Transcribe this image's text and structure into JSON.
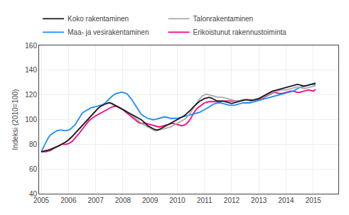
{
  "chart_data": {
    "type": "line",
    "ylabel": "Indeksi (2010=100)",
    "xlim": [
      2004.92,
      2015.92
    ],
    "ylim": [
      40,
      160
    ],
    "xticks": [
      2005,
      2006,
      2007,
      2008,
      2009,
      2010,
      2011,
      2012,
      2013,
      2014,
      2015
    ],
    "yticks": [
      40,
      60,
      80,
      100,
      120,
      140,
      160
    ],
    "grid": true,
    "legend": "upper left",
    "x": [
      2005.0,
      2005.0833333333333,
      2005.1666666666667,
      2005.25,
      2005.3333333333333,
      2005.4166666666667,
      2005.5,
      2005.5833333333333,
      2005.6666666666667,
      2005.75,
      2005.8333333333333,
      2005.9166666666667,
      2006.0,
      2006.0833333333333,
      2006.1666666666667,
      2006.25,
      2006.3333333333333,
      2006.4166666666667,
      2006.5,
      2006.5833333333333,
      2006.6666666666667,
      2006.75,
      2006.8333333333333,
      2006.9166666666667,
      2007.0,
      2007.0833333333333,
      2007.1666666666667,
      2007.25,
      2007.3333333333333,
      2007.4166666666667,
      2007.5,
      2007.5833333333333,
      2007.6666666666667,
      2007.75,
      2007.8333333333333,
      2007.9166666666667,
      2008.0,
      2008.0833333333333,
      2008.1666666666667,
      2008.25,
      2008.3333333333333,
      2008.4166666666667,
      2008.5,
      2008.5833333333333,
      2008.6666666666667,
      2008.75,
      2008.8333333333333,
      2008.9166666666667,
      2009.0,
      2009.0833333333333,
      2009.1666666666667,
      2009.25,
      2009.3333333333333,
      2009.4166666666667,
      2009.5,
      2009.5833333333333,
      2009.6666666666667,
      2009.75,
      2009.8333333333333,
      2009.9166666666667,
      2010.0,
      2010.0833333333333,
      2010.1666666666667,
      2010.25,
      2010.3333333333333,
      2010.4166666666667,
      2010.5,
      2010.5833333333333,
      2010.6666666666667,
      2010.75,
      2010.8333333333333,
      2010.9166666666667,
      2011.0,
      2011.0833333333333,
      2011.1666666666667,
      2011.25,
      2011.3333333333333,
      2011.4166666666667,
      2011.5,
      2011.5833333333333,
      2011.6666666666667,
      2011.75,
      2011.8333333333333,
      2011.9166666666667,
      2012.0,
      2012.0833333333333,
      2012.1666666666667,
      2012.25,
      2012.3333333333333,
      2012.4166666666667,
      2012.5,
      2012.5833333333333,
      2012.6666666666667,
      2012.75,
      2012.8333333333333,
      2012.9166666666667,
      2013.0,
      2013.0833333333333,
      2013.1666666666667,
      2013.25,
      2013.3333333333333,
      2013.4166666666667,
      2013.5,
      2013.5833333333333,
      2013.6666666666667,
      2013.75,
      2013.8333333333333,
      2013.9166666666667,
      2014.0,
      2014.0833333333333,
      2014.1666666666667,
      2014.25,
      2014.3333333333333,
      2014.4166666666667,
      2014.5,
      2014.5833333333333,
      2014.6666666666667,
      2014.75,
      2014.8333333333333,
      2014.9166666666667,
      2015.0,
      2015.0833333333333
    ],
    "series": [
      {
        "name": "Koko rakentaminen",
        "color": "#1a1a1a",
        "values": [
          74.0,
          74.3,
          74.8,
          75.3,
          75.8,
          76.5,
          77.2,
          78.0,
          79.0,
          80.0,
          81.0,
          82.0,
          83.5,
          85.0,
          87.0,
          89.0,
          91.0,
          93.0,
          95.5,
          97.5,
          99.5,
          101.0,
          103.0,
          105.0,
          107.0,
          109.0,
          110.5,
          111.5,
          112.5,
          113.0,
          113.5,
          113.0,
          112.0,
          111.0,
          110.0,
          109.0,
          108.0,
          107.0,
          106.0,
          105.0,
          104.0,
          103.0,
          102.0,
          101.0,
          100.0,
          98.5,
          96.5,
          95.0,
          94.0,
          93.0,
          92.0,
          91.5,
          92.0,
          93.0,
          94.0,
          95.0,
          96.0,
          97.0,
          98.0,
          99.0,
          100.0,
          101.0,
          102.0,
          103.0,
          104.5,
          106.0,
          108.0,
          110.0,
          112.0,
          113.5,
          115.0,
          116.0,
          117.0,
          117.5,
          118.0,
          117.5,
          116.5,
          115.5,
          115.0,
          115.0,
          115.0,
          114.5,
          114.0,
          113.5,
          113.0,
          113.5,
          114.0,
          114.5,
          115.0,
          115.5,
          116.0,
          116.0,
          115.5,
          115.5,
          116.0,
          116.5,
          117.0,
          118.0,
          119.0,
          120.0,
          121.0,
          122.0,
          123.0,
          123.5,
          124.0,
          124.5,
          125.0,
          125.5,
          126.0,
          126.5,
          127.0,
          127.5,
          128.0,
          128.5,
          128.0,
          127.5,
          127.0,
          127.5,
          128.0,
          128.5,
          129.0,
          129.5
        ]
      },
      {
        "name": "Talonrakentaminen",
        "color": "#aaaaaa",
        "values": [
          74.0,
          74.3,
          74.8,
          75.3,
          75.8,
          76.5,
          77.2,
          78.0,
          79.0,
          80.0,
          81.0,
          82.0,
          83.5,
          85.0,
          87.0,
          89.0,
          91.0,
          93.0,
          95.5,
          97.5,
          99.5,
          101.0,
          103.0,
          105.0,
          107.0,
          109.0,
          110.5,
          111.5,
          112.5,
          113.0,
          114.0,
          113.5,
          112.5,
          111.5,
          110.5,
          109.5,
          108.5,
          107.5,
          106.0,
          104.5,
          103.0,
          101.5,
          100.0,
          98.5,
          97.0,
          96.0,
          95.0,
          94.0,
          93.0,
          92.0,
          91.0,
          91.0,
          91.5,
          92.0,
          92.5,
          93.0,
          93.5,
          94.0,
          95.0,
          96.0,
          97.0,
          98.0,
          99.0,
          100.0,
          101.5,
          103.5,
          106.0,
          109.0,
          112.0,
          114.5,
          117.0,
          119.0,
          120.0,
          120.5,
          120.0,
          119.5,
          119.0,
          118.5,
          118.0,
          118.0,
          118.0,
          117.5,
          117.0,
          116.5,
          116.0,
          115.5,
          115.0,
          115.0,
          115.5,
          115.5,
          116.0,
          116.0,
          115.5,
          115.5,
          116.0,
          116.5,
          117.0,
          117.5,
          118.0,
          119.0,
          120.0,
          121.0,
          122.0,
          122.5,
          123.0,
          123.5,
          124.0,
          124.0,
          124.0,
          124.5,
          125.0,
          125.5,
          126.0,
          126.5,
          126.0,
          125.5,
          125.0,
          125.5,
          126.0,
          126.5,
          127.0,
          127.5
        ]
      },
      {
        "name": "Maa- ja vesirakentaminen",
        "color": "#1a8cff",
        "values": [
          74.0,
          78.0,
          82.0,
          85.0,
          87.5,
          89.0,
          90.0,
          91.0,
          91.5,
          91.5,
          91.0,
          91.0,
          91.5,
          92.5,
          94.0,
          96.0,
          99.0,
          102.0,
          105.0,
          106.5,
          107.5,
          108.5,
          109.5,
          110.0,
          110.5,
          111.0,
          111.5,
          112.0,
          113.0,
          115.0,
          117.0,
          118.5,
          120.0,
          121.0,
          121.5,
          122.0,
          122.0,
          121.5,
          120.5,
          118.5,
          116.0,
          113.0,
          110.0,
          107.0,
          104.5,
          103.0,
          102.0,
          101.0,
          100.5,
          100.0,
          100.0,
          100.5,
          101.0,
          101.5,
          102.0,
          102.0,
          101.5,
          101.0,
          101.0,
          101.0,
          101.0,
          101.5,
          102.0,
          102.5,
          103.0,
          103.5,
          104.0,
          104.5,
          105.0,
          105.5,
          106.0,
          107.0,
          108.0,
          109.0,
          110.0,
          111.5,
          112.5,
          113.0,
          113.5,
          113.5,
          113.0,
          112.5,
          112.0,
          111.5,
          111.5,
          111.5,
          112.0,
          112.5,
          113.0,
          113.5,
          113.5,
          113.5,
          113.5,
          114.0,
          114.5,
          115.0,
          115.5,
          116.0,
          116.5,
          117.0,
          117.5,
          118.0,
          118.5,
          119.0,
          119.5,
          120.0,
          120.5,
          121.0,
          121.5,
          122.0,
          122.5,
          123.0,
          124.0,
          125.0,
          126.0,
          126.5,
          127.0,
          127.5,
          128.0,
          128.5,
          128.5,
          128.5
        ]
      },
      {
        "name": "Erikoistunut rakennustoiminta",
        "color": "#ff007f",
        "values": [
          74.0,
          74.0,
          74.0,
          74.5,
          75.0,
          76.0,
          77.0,
          78.0,
          79.0,
          80.0,
          80.0,
          80.0,
          80.5,
          81.5,
          83.0,
          85.0,
          87.0,
          89.5,
          92.0,
          94.5,
          97.0,
          99.0,
          100.5,
          102.0,
          103.0,
          104.0,
          105.0,
          106.0,
          107.0,
          108.0,
          109.0,
          110.0,
          110.5,
          111.0,
          110.5,
          109.5,
          108.0,
          106.5,
          105.0,
          103.5,
          102.0,
          100.5,
          99.0,
          97.5,
          97.0,
          97.0,
          97.0,
          96.5,
          96.0,
          95.5,
          95.0,
          94.5,
          94.0,
          94.5,
          95.0,
          95.5,
          96.0,
          96.5,
          97.0,
          96.5,
          96.0,
          95.5,
          95.0,
          95.5,
          96.5,
          98.5,
          101.0,
          104.5,
          107.5,
          109.5,
          111.0,
          112.5,
          113.5,
          114.0,
          114.5,
          114.5,
          114.5,
          114.5,
          114.5,
          114.5,
          115.0,
          115.0,
          115.0,
          115.0,
          115.0,
          115.0,
          115.0,
          115.0,
          115.5,
          116.0,
          116.0,
          116.0,
          116.0,
          116.0,
          116.0,
          116.0,
          116.5,
          117.0,
          117.5,
          118.5,
          119.5,
          120.5,
          121.5,
          122.0,
          121.5,
          121.0,
          121.0,
          121.5,
          122.0,
          122.5,
          123.0,
          123.0,
          122.5,
          122.0,
          122.0,
          122.5,
          123.0,
          123.5,
          124.0,
          123.5,
          123.0,
          124.5
        ]
      }
    ]
  }
}
